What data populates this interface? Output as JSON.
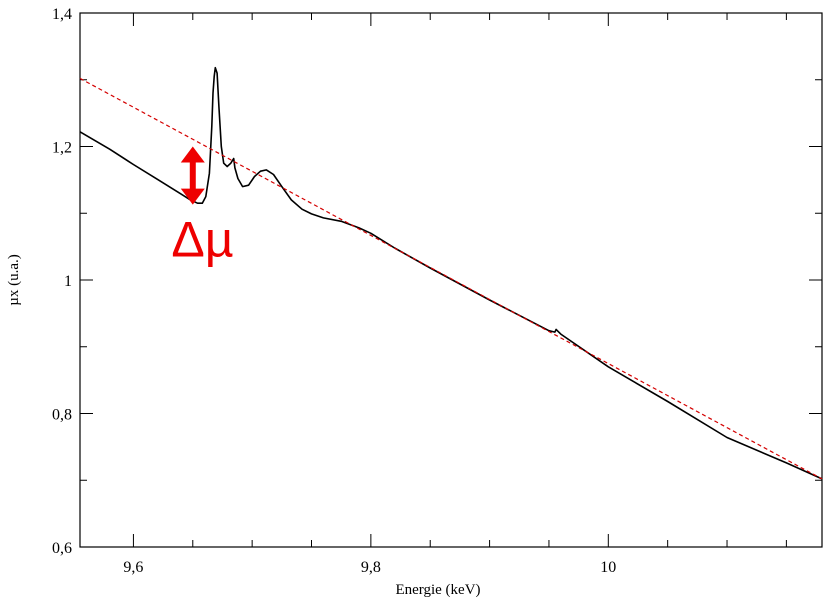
{
  "chart_data": {
    "type": "line",
    "title": "",
    "xlabel": "Energie (keV)",
    "ylabel": "µx (u.a.)",
    "xlim": [
      9.555,
      10.18
    ],
    "ylim": [
      0.6,
      1.4
    ],
    "x_ticks": [
      {
        "value": 9.6,
        "label": "9,6"
      },
      {
        "value": 9.8,
        "label": "9,8"
      },
      {
        "value": 10.0,
        "label": "10"
      }
    ],
    "x_minor_ticks": [
      9.65,
      9.7,
      9.75,
      9.85,
      9.9,
      9.95,
      10.05,
      10.1,
      10.15
    ],
    "y_ticks": [
      {
        "value": 0.6,
        "label": "0,6"
      },
      {
        "value": 0.8,
        "label": "0,8"
      },
      {
        "value": 1.0,
        "label": "1"
      },
      {
        "value": 1.2,
        "label": "1,2"
      },
      {
        "value": 1.4,
        "label": "1,4"
      }
    ],
    "y_minor_ticks": [
      0.7,
      0.9,
      1.1,
      1.3
    ],
    "grid": false,
    "legend": "none",
    "series": [
      {
        "style": "solid",
        "color": "#000000",
        "x": [
          9.555,
          9.58,
          9.6,
          9.62,
          9.64,
          9.648,
          9.654,
          9.658,
          9.661,
          9.664,
          9.666,
          9.667,
          9.668,
          9.669,
          9.6705,
          9.672,
          9.674,
          9.676,
          9.679,
          9.682,
          9.6845,
          9.6855,
          9.688,
          9.692,
          9.697,
          9.702,
          9.707,
          9.712,
          9.718,
          9.725,
          9.733,
          9.742,
          9.75,
          9.76,
          9.775,
          9.79,
          9.8,
          9.82,
          9.85,
          9.9,
          9.95,
          9.955,
          9.956,
          9.96,
          10.0,
          10.05,
          10.1,
          10.15,
          10.18
        ],
        "y": [
          1.222,
          1.196,
          1.173,
          1.151,
          1.129,
          1.12,
          1.115,
          1.115,
          1.125,
          1.16,
          1.23,
          1.28,
          1.305,
          1.318,
          1.31,
          1.26,
          1.2,
          1.175,
          1.17,
          1.175,
          1.182,
          1.168,
          1.152,
          1.14,
          1.142,
          1.155,
          1.163,
          1.165,
          1.158,
          1.14,
          1.12,
          1.106,
          1.099,
          1.093,
          1.088,
          1.078,
          1.07,
          1.048,
          1.018,
          0.97,
          0.924,
          0.922,
          0.926,
          0.919,
          0.87,
          0.818,
          0.764,
          0.726,
          0.702
        ]
      },
      {
        "style": "dashed",
        "color": "#d40000",
        "x": [
          9.555,
          10.18
        ],
        "y": [
          1.302,
          0.702
        ]
      }
    ],
    "annotations": [
      {
        "type": "double-arrow",
        "color": "#ee0000",
        "x": 9.65,
        "y_from": 1.113,
        "y_to": 1.2
      },
      {
        "type": "text",
        "label": "Δµ",
        "color": "#ee0000",
        "x": 9.632,
        "y": 1.035
      }
    ]
  }
}
